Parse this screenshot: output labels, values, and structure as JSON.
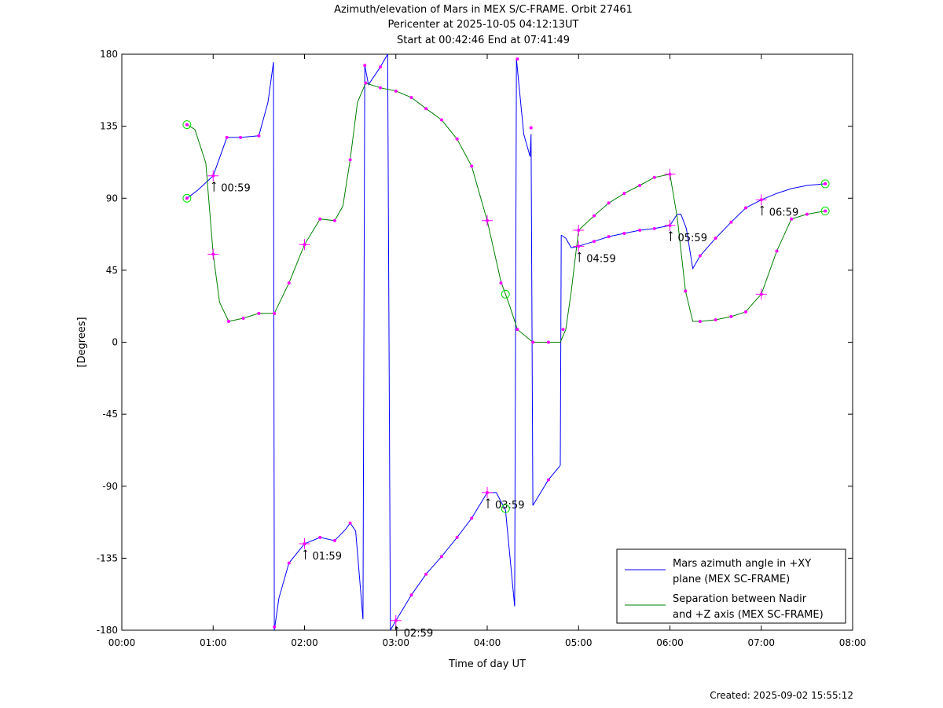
{
  "title_lines": [
    "Azimuth/elevation of Mars in MEX S/C-FRAME.  Orbit 27461",
    "Pericenter at 2025-10-05 04:12:13UT",
    "Start at 00:42:46 End at 07:41:49"
  ],
  "created": "Created: 2025-09-02 15:55:12",
  "chart_data": {
    "type": "line",
    "xlabel": "Time of day UT",
    "ylabel": "[Degrees]",
    "xlim": [
      0,
      8
    ],
    "ylim": [
      -180,
      180
    ],
    "xticks": [
      0,
      1,
      2,
      3,
      4,
      5,
      6,
      7,
      8
    ],
    "xtick_labels": [
      "00:00",
      "01:00",
      "02:00",
      "03:00",
      "04:00",
      "05:00",
      "06:00",
      "07:00",
      "08:00"
    ],
    "yticks": [
      180,
      135,
      90,
      45,
      0,
      -45,
      -90,
      -135,
      -180
    ],
    "ytick_labels": [
      "180",
      "135",
      "90",
      "45",
      "0",
      "-45",
      "-90",
      "-135",
      "-180"
    ],
    "grid": false,
    "legend_position": "bottom-right",
    "series": [
      {
        "name": "Mars azimuth angle in +XY plane (MEX SC-FRAME)",
        "legend_lines": [
          "Mars azimuth angle in +XY",
          "plane (MEX SC-FRAME)"
        ],
        "color": "#0000ff",
        "segments": [
          [
            [
              0.713,
              90
            ],
            [
              0.83,
              95
            ],
            [
              1.0,
              104
            ],
            [
              1.15,
              128
            ],
            [
              1.3,
              128
            ],
            [
              1.5,
              129
            ],
            [
              1.6,
              150
            ],
            [
              1.66,
              175
            ]
          ],
          [
            [
              1.66,
              175
            ],
            [
              1.67,
              -180
            ]
          ],
          [
            [
              1.67,
              -180
            ],
            [
              1.72,
              -160
            ],
            [
              1.83,
              -138
            ],
            [
              2.0,
              -126
            ],
            [
              2.17,
              -122
            ],
            [
              2.33,
              -124
            ],
            [
              2.45,
              -117
            ],
            [
              2.5,
              -113
            ],
            [
              2.56,
              -118
            ],
            [
              2.64,
              -173
            ]
          ],
          [
            [
              2.64,
              -173
            ],
            [
              2.66,
              173
            ]
          ],
          [
            [
              2.66,
              173
            ],
            [
              2.7,
              161
            ],
            [
              2.83,
              172
            ],
            [
              2.91,
              180
            ]
          ],
          [
            [
              2.91,
              180
            ],
            [
              2.94,
              -180
            ]
          ],
          [
            [
              2.94,
              -180
            ],
            [
              3.0,
              -174
            ],
            [
              3.17,
              -158
            ],
            [
              3.33,
              -145
            ],
            [
              3.5,
              -134
            ],
            [
              3.67,
              -122
            ],
            [
              3.83,
              -110
            ],
            [
              4.0,
              -94
            ],
            [
              4.1,
              -94
            ],
            [
              4.2,
              -105
            ],
            [
              4.3,
              -165
            ]
          ],
          [
            [
              4.3,
              -165
            ],
            [
              4.32,
              177
            ]
          ],
          [
            [
              4.32,
              177
            ],
            [
              4.4,
              130
            ],
            [
              4.47,
              116
            ],
            [
              4.48,
              130
            ],
            [
              4.5,
              -102
            ]
          ],
          [
            [
              4.5,
              -102
            ],
            [
              4.67,
              -86
            ],
            [
              4.8,
              -77
            ]
          ],
          [
            [
              4.8,
              -77
            ],
            [
              4.81,
              67
            ]
          ],
          [
            [
              4.81,
              67
            ],
            [
              4.86,
              65
            ],
            [
              4.92,
              59
            ],
            [
              5.0,
              60
            ],
            [
              5.17,
              63
            ],
            [
              5.33,
              66
            ],
            [
              5.5,
              68
            ],
            [
              5.67,
              70
            ],
            [
              5.83,
              71
            ],
            [
              6.0,
              73
            ],
            [
              6.08,
              80
            ],
            [
              6.12,
              80
            ],
            [
              6.18,
              71
            ],
            [
              6.25,
              46
            ],
            [
              6.33,
              54
            ],
            [
              6.5,
              65
            ],
            [
              6.67,
              75
            ],
            [
              6.83,
              84
            ],
            [
              7.0,
              89
            ],
            [
              7.17,
              93
            ],
            [
              7.33,
              96
            ],
            [
              7.5,
              98
            ],
            [
              7.7,
              99
            ]
          ]
        ],
        "markers": [
          [
            0.713,
            90
          ],
          [
            1.0,
            104
          ],
          [
            1.15,
            128
          ],
          [
            1.3,
            128
          ],
          [
            1.5,
            129
          ],
          [
            1.67,
            -178
          ],
          [
            1.83,
            -138
          ],
          [
            2.0,
            -126
          ],
          [
            2.17,
            -122
          ],
          [
            2.33,
            -124
          ],
          [
            2.5,
            -113
          ],
          [
            2.66,
            173
          ],
          [
            2.83,
            172
          ],
          [
            3.0,
            -174
          ],
          [
            3.17,
            -158
          ],
          [
            3.33,
            -145
          ],
          [
            3.5,
            -134
          ],
          [
            3.67,
            -122
          ],
          [
            3.83,
            -110
          ],
          [
            4.0,
            -94
          ],
          [
            4.33,
            177
          ],
          [
            4.48,
            134
          ],
          [
            4.67,
            -86
          ],
          [
            5.0,
            60
          ],
          [
            5.17,
            63
          ],
          [
            5.33,
            66
          ],
          [
            5.5,
            68
          ],
          [
            5.67,
            70
          ],
          [
            5.83,
            71
          ],
          [
            6.0,
            73
          ],
          [
            6.33,
            54
          ],
          [
            6.5,
            65
          ],
          [
            6.67,
            75
          ],
          [
            6.83,
            84
          ],
          [
            7.0,
            89
          ],
          [
            7.7,
            99
          ]
        ]
      },
      {
        "name": "Separation between Nadir and +Z axis (MEX SC-FRAME)",
        "legend_lines": [
          "Separation between Nadir",
          "and +Z axis (MEX SC-FRAME)"
        ],
        "color": "#008000",
        "segments": [
          [
            [
              0.713,
              136
            ],
            [
              0.8,
              133
            ],
            [
              0.92,
              112
            ],
            [
              1.0,
              55
            ],
            [
              1.07,
              25
            ],
            [
              1.17,
              13
            ],
            [
              1.33,
              15
            ],
            [
              1.5,
              18
            ],
            [
              1.67,
              18
            ],
            [
              1.83,
              37
            ],
            [
              2.0,
              61
            ],
            [
              2.17,
              77
            ],
            [
              2.33,
              76
            ],
            [
              2.42,
              85
            ],
            [
              2.5,
              114
            ],
            [
              2.58,
              150
            ],
            [
              2.67,
              162
            ],
            [
              2.83,
              159
            ],
            [
              3.0,
              157
            ],
            [
              3.17,
              153
            ],
            [
              3.33,
              146
            ],
            [
              3.5,
              139
            ],
            [
              3.67,
              127
            ],
            [
              3.83,
              110
            ],
            [
              4.0,
              76
            ],
            [
              4.15,
              38
            ],
            [
              4.25,
              22
            ],
            [
              4.33,
              8
            ],
            [
              4.5,
              0
            ],
            [
              4.67,
              0
            ],
            [
              4.8,
              0
            ],
            [
              4.86,
              8
            ],
            [
              4.92,
              32
            ],
            [
              5.0,
              70
            ],
            [
              5.17,
              79
            ],
            [
              5.33,
              87
            ],
            [
              5.5,
              93
            ],
            [
              5.67,
              98
            ],
            [
              5.83,
              103
            ],
            [
              6.0,
              105
            ],
            [
              6.08,
              78
            ],
            [
              6.17,
              32
            ],
            [
              6.25,
              13
            ],
            [
              6.33,
              13
            ],
            [
              6.5,
              14
            ],
            [
              6.67,
              16
            ],
            [
              6.83,
              19
            ],
            [
              6.92,
              25
            ],
            [
              7.0,
              30
            ],
            [
              7.17,
              57
            ],
            [
              7.33,
              77
            ],
            [
              7.5,
              80
            ],
            [
              7.7,
              82
            ]
          ]
        ],
        "markers": [
          [
            0.713,
            136
          ],
          [
            1.0,
            55
          ],
          [
            1.17,
            13
          ],
          [
            1.33,
            15
          ],
          [
            1.5,
            18
          ],
          [
            1.67,
            18
          ],
          [
            1.83,
            37
          ],
          [
            2.0,
            61
          ],
          [
            2.17,
            77
          ],
          [
            2.33,
            76
          ],
          [
            2.5,
            114
          ],
          [
            2.67,
            162
          ],
          [
            2.83,
            159
          ],
          [
            3.0,
            157
          ],
          [
            3.17,
            153
          ],
          [
            3.33,
            146
          ],
          [
            3.5,
            139
          ],
          [
            3.67,
            127
          ],
          [
            3.83,
            110
          ],
          [
            4.0,
            76
          ],
          [
            4.15,
            37
          ],
          [
            4.33,
            8
          ],
          [
            4.5,
            0
          ],
          [
            4.67,
            0
          ],
          [
            4.83,
            8
          ],
          [
            5.0,
            70
          ],
          [
            5.17,
            79
          ],
          [
            5.33,
            87
          ],
          [
            5.5,
            93
          ],
          [
            5.67,
            98
          ],
          [
            5.83,
            103
          ],
          [
            6.0,
            105
          ],
          [
            6.17,
            32
          ],
          [
            6.33,
            13
          ],
          [
            6.5,
            14
          ],
          [
            6.67,
            16
          ],
          [
            6.83,
            19
          ],
          [
            7.0,
            30
          ],
          [
            7.17,
            57
          ],
          [
            7.33,
            77
          ],
          [
            7.5,
            80
          ],
          [
            7.7,
            82
          ]
        ]
      }
    ],
    "hour_marks": [
      {
        "label": "00:59",
        "x": 1.0,
        "y": 104
      },
      {
        "label": "01:59",
        "x": 2.0,
        "y": -126
      },
      {
        "label": "02:59",
        "x": 3.0,
        "y": -174
      },
      {
        "label": "03:59",
        "x": 4.0,
        "y": -94
      },
      {
        "label": "04:59",
        "x": 5.0,
        "y": 60
      },
      {
        "label": "05:59",
        "x": 6.0,
        "y": 73
      },
      {
        "label": "06:59",
        "x": 7.0,
        "y": 89
      }
    ],
    "extra_crosses": [
      [
        1.0,
        55
      ],
      [
        2.0,
        61
      ],
      [
        4.0,
        76
      ],
      [
        5.0,
        70
      ],
      [
        6.0,
        105
      ],
      [
        7.0,
        30
      ]
    ],
    "circle_markers": [
      [
        0.713,
        90
      ],
      [
        0.713,
        136
      ],
      [
        4.2,
        30
      ],
      [
        4.2,
        -104
      ],
      [
        7.7,
        99
      ],
      [
        7.7,
        82
      ]
    ]
  }
}
